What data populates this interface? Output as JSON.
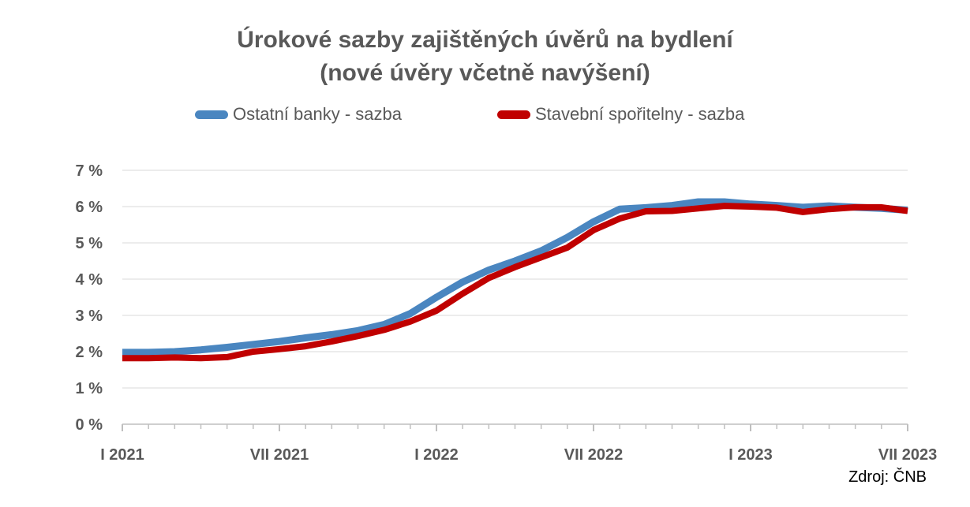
{
  "chart_data": {
    "type": "line",
    "title": "Úrokové sazby zajištěných úvěrů na bydlení",
    "subtitle": "(nové úvěry včetně navýšení)",
    "xlabel": "",
    "ylabel": "",
    "x": [
      "I 2021",
      "II 2021",
      "III 2021",
      "IV 2021",
      "V 2021",
      "VI 2021",
      "VII 2021",
      "VIII 2021",
      "IX 2021",
      "X 2021",
      "XI 2021",
      "XII 2021",
      "I 2022",
      "II 2022",
      "III 2022",
      "IV 2022",
      "V 2022",
      "VI 2022",
      "VII 2022",
      "VIII 2022",
      "IX 2022",
      "X 2022",
      "XI 2022",
      "XII 2022",
      "I 2023",
      "II 2023",
      "III 2023",
      "IV 2023",
      "V 2023",
      "VI 2023",
      "VII 2023"
    ],
    "x_tick_labels": [
      "I 2021",
      "VII 2021",
      "I 2022",
      "VII 2022",
      "I 2023",
      "VII 2023"
    ],
    "y_ticks": [
      "0 %",
      "1 %",
      "2 %",
      "3 %",
      "4 %",
      "5 %",
      "6 %",
      "7 %"
    ],
    "ylim": [
      0,
      7
    ],
    "grid": true,
    "legend_position": "top",
    "series": [
      {
        "name": "Ostatní banky - sazba",
        "color": "#4a86c0",
        "values": [
          1.98,
          1.98,
          2.0,
          2.05,
          2.12,
          2.2,
          2.28,
          2.38,
          2.47,
          2.58,
          2.75,
          3.05,
          3.5,
          3.92,
          4.25,
          4.5,
          4.78,
          5.15,
          5.58,
          5.93,
          5.97,
          6.03,
          6.13,
          6.13,
          6.07,
          6.03,
          5.98,
          6.02,
          5.98,
          5.95,
          5.9
        ]
      },
      {
        "name": "Stavební spořitelny - sazba",
        "color": "#c00000",
        "values": [
          1.82,
          1.82,
          1.84,
          1.82,
          1.85,
          2.0,
          2.07,
          2.15,
          2.28,
          2.43,
          2.6,
          2.83,
          3.13,
          3.6,
          4.03,
          4.33,
          4.6,
          4.87,
          5.35,
          5.67,
          5.87,
          5.88,
          5.95,
          6.02,
          6.0,
          5.97,
          5.85,
          5.93,
          5.98,
          5.98,
          5.88
        ]
      }
    ]
  },
  "source": "Zdroj: ČNB"
}
